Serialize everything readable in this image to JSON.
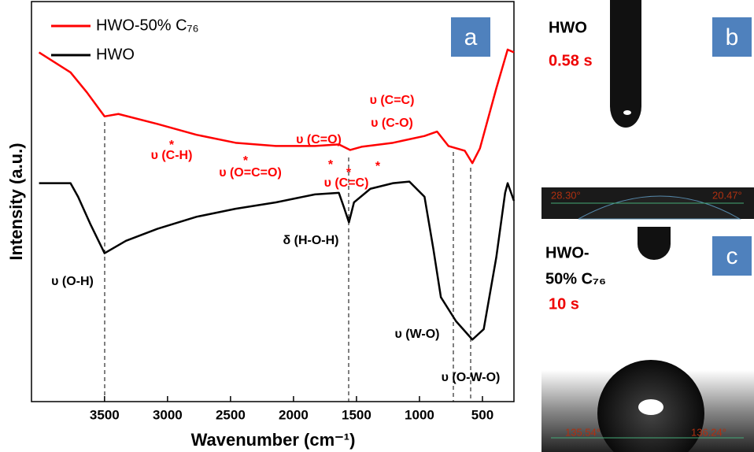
{
  "chart_data": {
    "type": "line",
    "x_label": "Wavenumber (cm⁻¹)",
    "y_label": "Intensity (a.u.)",
    "xlim": [
      4080,
      250
    ],
    "ylim": [
      0,
      100
    ],
    "xticks": [
      3500,
      3000,
      2500,
      2000,
      1500,
      1000,
      500
    ],
    "panel_label": "a",
    "series": [
      {
        "name": "HWO-50% C₇₆",
        "color": "#ff0000",
        "x": [
          4020,
          3770,
          3640,
          3500,
          3390,
          3080,
          2770,
          2460,
          2140,
          1830,
          1640,
          1550,
          1460,
          1210,
          960,
          860,
          770,
          640,
          580,
          520,
          390,
          300,
          250
        ],
        "values": [
          87.3,
          82.3,
          77.3,
          71.3,
          71.9,
          69.4,
          66.7,
          64.7,
          63.9,
          63.9,
          64.3,
          62.9,
          63.7,
          64.7,
          66.4,
          67.5,
          63.9,
          62.7,
          59.6,
          63.3,
          78.3,
          88.0,
          87.3
        ]
      },
      {
        "name": "HWO",
        "color": "#000000",
        "x": [
          4020,
          3770,
          3710,
          3610,
          3500,
          3330,
          3080,
          2770,
          2460,
          2140,
          1830,
          1640,
          1600,
          1560,
          1520,
          1390,
          1210,
          1080,
          960,
          890,
          830,
          710,
          580,
          490,
          390,
          320,
          300,
          250
        ],
        "values": [
          54.6,
          54.6,
          51.2,
          44.2,
          37.1,
          40.2,
          43.2,
          46.2,
          48.2,
          49.8,
          51.8,
          52.2,
          48.6,
          44.8,
          49.8,
          53.2,
          54.6,
          55.0,
          51.2,
          38.2,
          26.1,
          20.1,
          15.5,
          18.1,
          36.1,
          52.2,
          54.6,
          50.2
        ]
      }
    ],
    "annotations": [
      "υ (C-H)",
      "υ (O=C=O)",
      "υ (C=O)",
      "υ (C=C)",
      "υ (C=C)",
      "υ (C-O)",
      "*",
      "*",
      "*",
      "*",
      "*",
      "υ (O-H)",
      "δ (H-O-H)",
      "υ (W-O)",
      "υ (O-W-O)"
    ]
  },
  "panels": [
    {
      "letter": "b",
      "sample": "HWO",
      "time": "0.58 s",
      "angles": [
        "28.30°",
        "20.47°"
      ]
    },
    {
      "letter": "c",
      "sample": [
        "HWO-",
        "50% C₇₆"
      ],
      "time": "10 s",
      "angles": [
        "135.54°",
        "136.24°"
      ]
    }
  ]
}
